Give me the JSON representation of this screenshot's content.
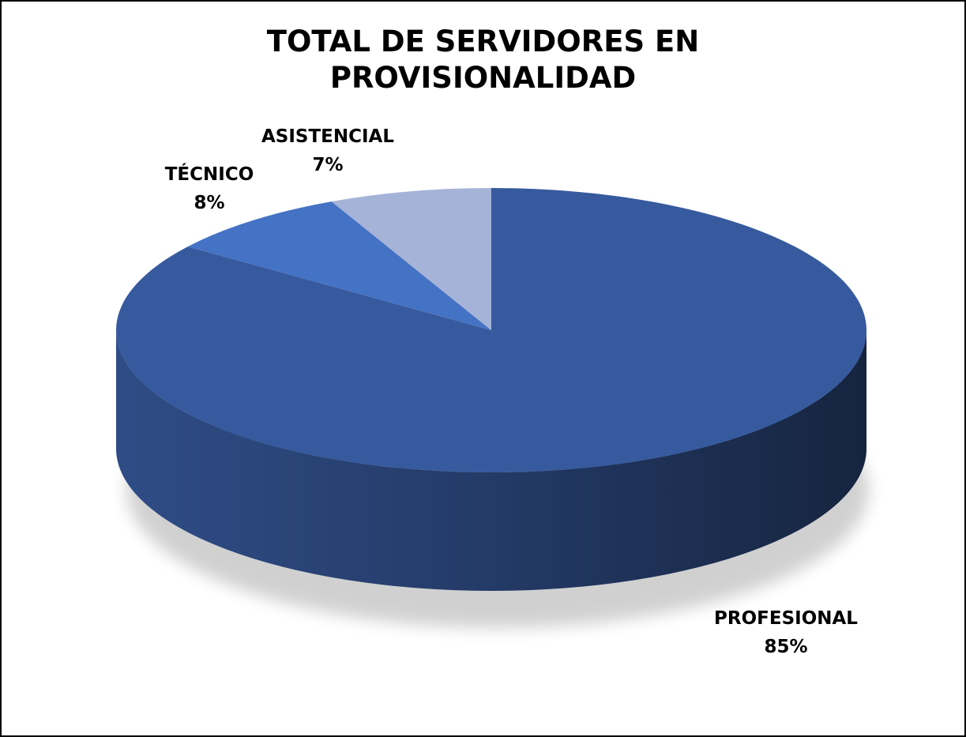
{
  "chart_data": {
    "type": "pie",
    "title": "TOTAL DE SERVIDORES EN PROVISIONALIDAD",
    "categories": [
      "PROFESIONAL",
      "TÉCNICO",
      "ASISTENCIAL"
    ],
    "values": [
      85,
      8,
      7
    ],
    "value_labels": [
      "85%",
      "8%",
      "7%"
    ],
    "colors": [
      "#375a9e",
      "#4472c4",
      "#a5b3d8"
    ]
  }
}
